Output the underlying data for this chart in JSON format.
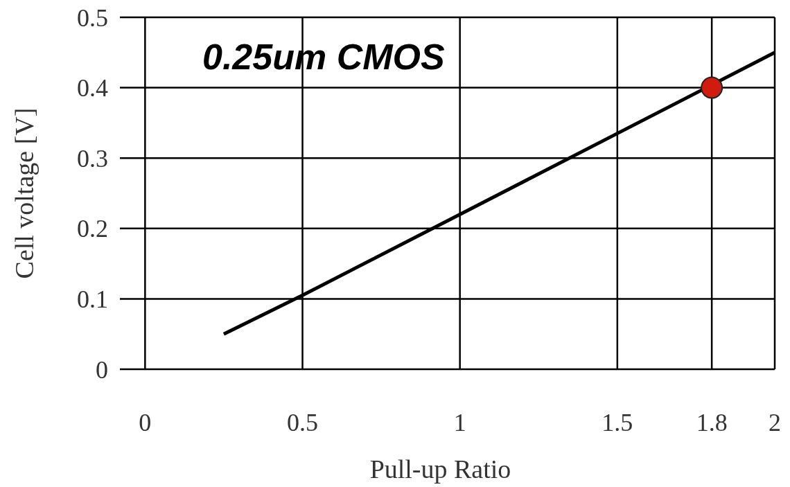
{
  "chart_data": {
    "type": "line",
    "title": "0.25um CMOS",
    "xlabel": "Pull-up Ratio",
    "ylabel": "Cell voltage [V]",
    "xlim": [
      -0.08,
      2
    ],
    "ylim": [
      0,
      0.5
    ],
    "xticks": [
      0,
      0.5,
      1,
      1.5,
      1.8,
      2
    ],
    "yticks": [
      0,
      0.1,
      0.2,
      0.3,
      0.4,
      0.5
    ],
    "grid": true,
    "series": [
      {
        "color": "#000000",
        "x": [
          0.25,
          0.5,
          1,
          1.5,
          2
        ],
        "values": [
          0.05,
          0.105,
          0.22,
          0.335,
          0.45
        ]
      },
      {
        "type": "scatter",
        "color": "#d01c0f",
        "marker": "circle",
        "x": [
          1.8
        ],
        "values": [
          0.4
        ]
      }
    ]
  }
}
